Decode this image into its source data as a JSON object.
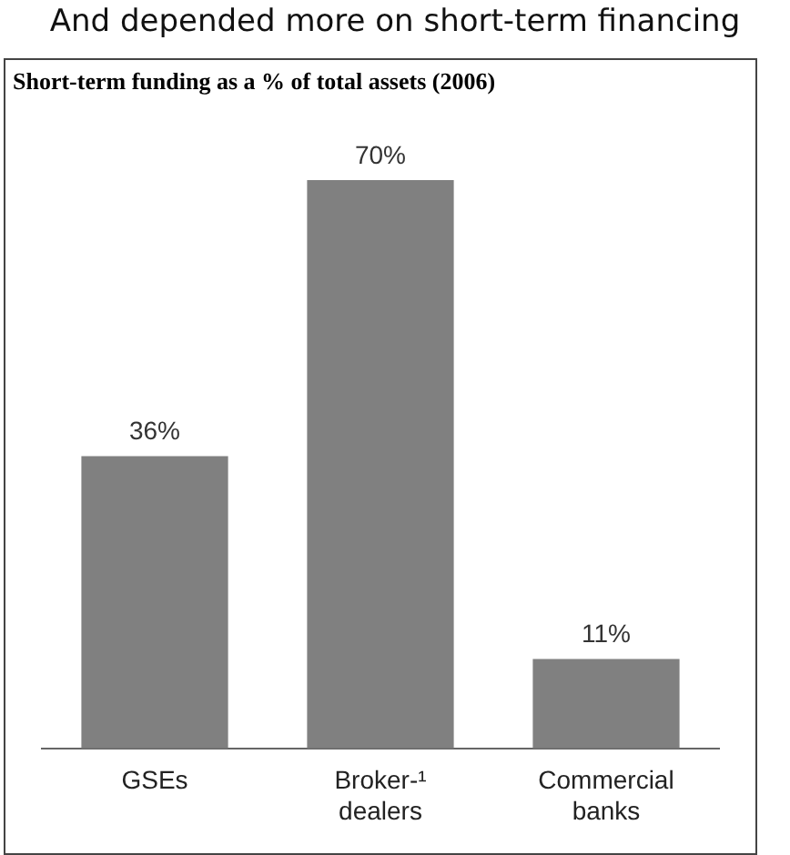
{
  "chart_data": {
    "type": "bar",
    "title": "And depended more on short-term financing",
    "subtitle": "Short-term funding as a % of total assets (2006)",
    "categories": [
      "GSEs",
      "Broker-¹\ndealers",
      "Commercial\nbanks"
    ],
    "values": [
      36,
      70,
      11
    ],
    "value_labels": [
      "36%",
      "70%",
      "11%"
    ],
    "color": "#808080",
    "grid": false,
    "legend": false
  }
}
